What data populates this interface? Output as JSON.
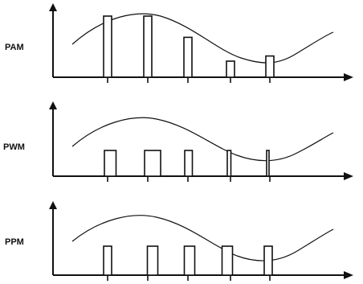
{
  "diagram": {
    "panels": [
      {
        "id": "pam",
        "label": "PAM",
        "pulses": [
          {
            "level": 0.95,
            "width": 1.0
          },
          {
            "level": 0.95,
            "width": 1.0
          },
          {
            "level": 0.62,
            "width": 1.0
          },
          {
            "level": 0.25,
            "width": 1.0
          },
          {
            "level": 0.33,
            "width": 1.0
          }
        ]
      },
      {
        "id": "pwm",
        "label": "PWM",
        "pulses": [
          {
            "level": 0.4,
            "width": 1.45
          },
          {
            "level": 0.4,
            "width": 2.0
          },
          {
            "level": 0.4,
            "width": 0.95
          },
          {
            "level": 0.4,
            "width": 0.45
          },
          {
            "level": 0.4,
            "width": 0.25
          }
        ]
      },
      {
        "id": "ppm",
        "label": "PPM",
        "pulses": [
          {
            "level": 0.45,
            "width": 1.0,
            "offset": 0.0
          },
          {
            "level": 0.45,
            "width": 1.3,
            "offset": 0.3
          },
          {
            "level": 0.45,
            "width": 1.3,
            "offset": 0.1
          },
          {
            "level": 0.45,
            "width": 1.3,
            "offset": -0.2
          },
          {
            "level": 0.45,
            "width": 1.0,
            "offset": -0.1
          }
        ]
      }
    ],
    "colors": {
      "ink": "#111111",
      "background": "#ffffff"
    }
  }
}
